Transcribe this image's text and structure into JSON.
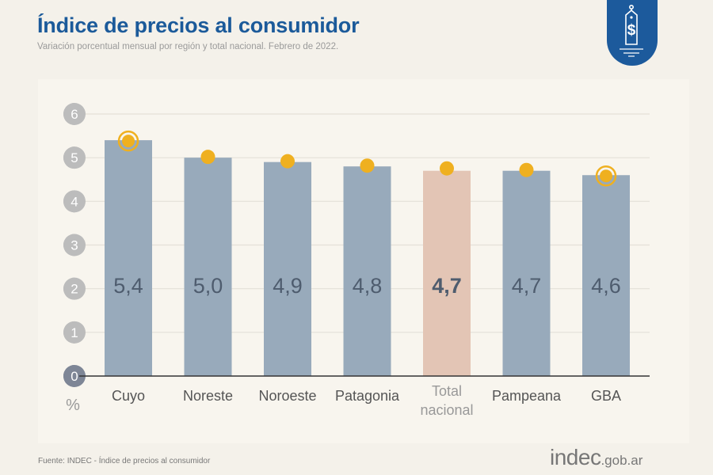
{
  "header": {
    "title": "Índice de precios al consumidor",
    "subtitle": "Variación porcentual mensual por región y total nacional. Febrero de 2022.",
    "badge_icon": "price-tag-dollar-icon"
  },
  "footer": {
    "source": "Fuente: INDEC - Índice de precios al consumidor",
    "logo_main": "indec",
    "logo_domain": ".gob.ar"
  },
  "colors": {
    "brand_blue": "#1c5a9c",
    "bar_region": "#98aabb",
    "bar_total": "#e3c5b5",
    "marker": "#efb020",
    "value_label": "#4e5c6e"
  },
  "chart_data": {
    "type": "bar",
    "title": "Índice de precios al consumidor",
    "subtitle": "Variación porcentual mensual por región y total nacional. Febrero de 2022.",
    "xlabel": "",
    "ylabel": "%",
    "ylim": [
      0,
      6
    ],
    "yticks": [
      "0",
      "1",
      "2",
      "3",
      "4",
      "5",
      "6"
    ],
    "grid": true,
    "categories": [
      "Cuyo",
      "Noreste",
      "Noroeste",
      "Patagonia",
      "Total nacional",
      "Pampeana",
      "GBA"
    ],
    "values": [
      5.4,
      5.0,
      4.9,
      4.8,
      4.7,
      4.7,
      4.6
    ],
    "value_labels": [
      "5,4",
      "5,0",
      "4,9",
      "4,8",
      "4,7",
      "4,7",
      "4,6"
    ],
    "highlight": [
      "max",
      "",
      "",
      "",
      "total",
      "",
      "min"
    ]
  }
}
